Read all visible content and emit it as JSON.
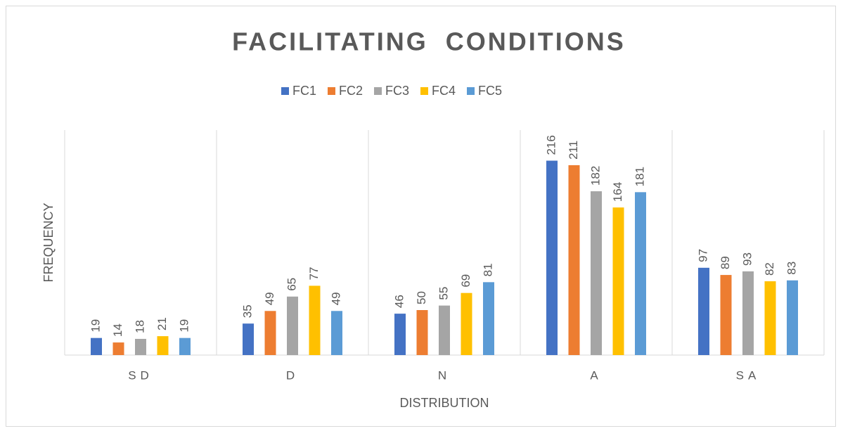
{
  "chart_data": {
    "type": "bar",
    "title": "FACILITATING CONDITIONS",
    "x_label": "DISTRIBUTION",
    "y_label": "FREQUENCY",
    "categories": [
      "SD",
      "D",
      "N",
      "A",
      "SA"
    ],
    "series": [
      {
        "name": "FC1",
        "color": "#4472c4",
        "values": [
          19,
          35,
          46,
          216,
          97
        ]
      },
      {
        "name": "FC2",
        "color": "#ed7d31",
        "values": [
          14,
          49,
          50,
          211,
          89
        ]
      },
      {
        "name": "FC3",
        "color": "#a5a5a5",
        "values": [
          18,
          65,
          55,
          182,
          93
        ]
      },
      {
        "name": "FC4",
        "color": "#ffc000",
        "values": [
          21,
          77,
          69,
          164,
          82
        ]
      },
      {
        "name": "FC5",
        "color": "#5b9bd5",
        "values": [
          19,
          49,
          81,
          181,
          83
        ]
      }
    ],
    "ylim": [
      0,
      250
    ],
    "legend": "top",
    "data_labels": true
  }
}
